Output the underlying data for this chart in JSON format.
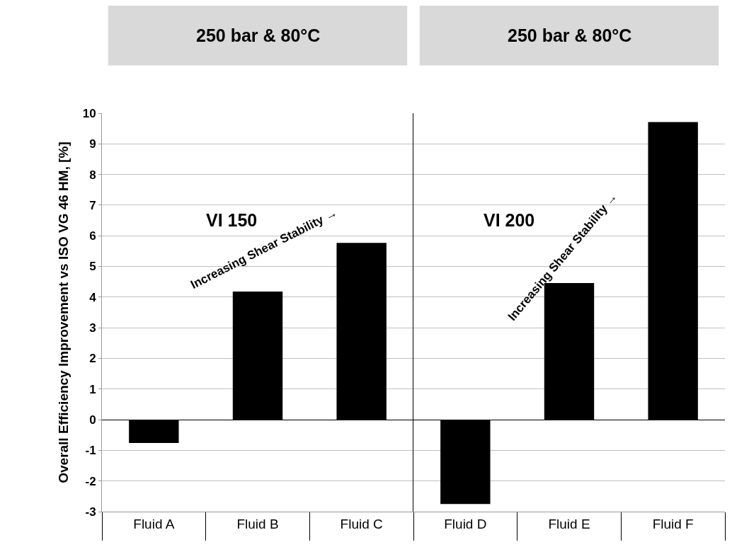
{
  "chart_data": [
    {
      "type": "bar",
      "title": "250 bar & 80°C",
      "ylabel": "Overall Efficiency Improvement vs ISO VG 46 HM, [%]",
      "categories": [
        "Fluid A",
        "Fluid B",
        "Fluid C"
      ],
      "values": [
        -0.76,
        4.18,
        5.77
      ],
      "color": "#000000",
      "ylim": [
        -3,
        10
      ],
      "yticks": [
        -3,
        -2,
        -1,
        0,
        1,
        2,
        3,
        4,
        5,
        6,
        7,
        8,
        9,
        10
      ],
      "grid": "y",
      "annotations": [
        "VI 150",
        "Increasing Shear Stability →"
      ]
    },
    {
      "type": "bar",
      "title": "250 bar & 80°C",
      "categories": [
        "Fluid D",
        "Fluid E",
        "Fluid F"
      ],
      "values": [
        -2.75,
        4.46,
        9.71
      ],
      "color": "#000000",
      "ylim": [
        -3,
        10
      ],
      "yticks": [
        -3,
        -2,
        -1,
        0,
        1,
        2,
        3,
        4,
        5,
        6,
        7,
        8,
        9,
        10
      ],
      "grid": "y",
      "tick_labels": "x",
      "annotations": [
        "VI 200",
        "Increasing Shear Stability →"
      ]
    }
  ]
}
